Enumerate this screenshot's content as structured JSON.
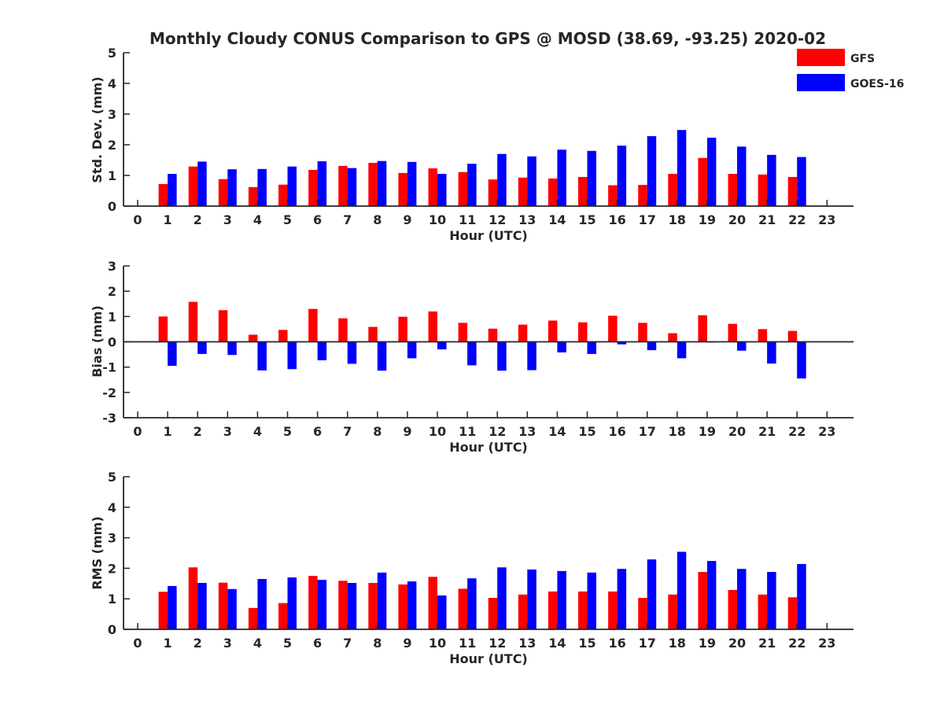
{
  "title": "Monthly Cloudy CONUS Comparison to GPS @ MOSD (38.69, -93.25) 2020-02",
  "legend": {
    "placement": "top-right",
    "items": [
      {
        "name": "GFS",
        "color": "#ff0000"
      },
      {
        "name": "GOES-16",
        "color": "#0000ff"
      }
    ]
  },
  "chart_data": [
    {
      "type": "bar",
      "ylabel": "Std. Dev. (mm)",
      "xlabel": "Hour (UTC)",
      "ylim": [
        0,
        5
      ],
      "yticks": [
        0,
        1,
        2,
        3,
        4,
        5
      ],
      "categories": [
        "0",
        "1",
        "2",
        "3",
        "4",
        "5",
        "6",
        "7",
        "8",
        "9",
        "10",
        "11",
        "12",
        "13",
        "14",
        "15",
        "16",
        "17",
        "18",
        "19",
        "20",
        "21",
        "22",
        "23"
      ],
      "series": [
        {
          "name": "GFS",
          "color": "#ff0000",
          "values": [
            null,
            0.72,
            1.29,
            0.88,
            0.62,
            0.7,
            1.18,
            1.31,
            1.41,
            1.08,
            1.23,
            1.11,
            0.87,
            0.93,
            0.9,
            0.95,
            0.68,
            0.69,
            1.05,
            1.57,
            1.05,
            1.03,
            0.95,
            null
          ]
        },
        {
          "name": "GOES-16",
          "color": "#0000ff",
          "values": [
            null,
            1.05,
            1.45,
            1.2,
            1.21,
            1.29,
            1.46,
            1.24,
            1.47,
            1.44,
            1.05,
            1.38,
            1.7,
            1.62,
            1.84,
            1.8,
            1.97,
            2.28,
            2.48,
            2.23,
            1.94,
            1.67,
            1.6,
            null
          ]
        }
      ]
    },
    {
      "type": "bar",
      "ylabel": "Bias (mm)",
      "xlabel": "Hour (UTC)",
      "ylim": [
        -3,
        3
      ],
      "yticks": [
        -3,
        -2,
        -1,
        0,
        1,
        2,
        3
      ],
      "zero_line": true,
      "categories": [
        "0",
        "1",
        "2",
        "3",
        "4",
        "5",
        "6",
        "7",
        "8",
        "9",
        "10",
        "11",
        "12",
        "13",
        "14",
        "15",
        "16",
        "17",
        "18",
        "19",
        "20",
        "21",
        "22",
        "23"
      ],
      "series": [
        {
          "name": "GFS",
          "color": "#ff0000",
          "values": [
            null,
            1.0,
            1.58,
            1.25,
            0.28,
            0.47,
            1.3,
            0.93,
            0.59,
            0.99,
            1.2,
            0.75,
            0.52,
            0.68,
            0.84,
            0.77,
            1.03,
            0.75,
            0.34,
            1.05,
            0.71,
            0.5,
            0.43,
            null
          ]
        },
        {
          "name": "GOES-16",
          "color": "#0000ff",
          "values": [
            null,
            -0.95,
            -0.48,
            -0.52,
            -1.13,
            -1.08,
            -0.73,
            -0.87,
            -1.14,
            -0.65,
            -0.3,
            -0.93,
            -1.14,
            -1.12,
            -0.42,
            -0.48,
            -0.1,
            -0.33,
            -0.65,
            -0.03,
            -0.35,
            -0.86,
            -1.45,
            null
          ]
        }
      ]
    },
    {
      "type": "bar",
      "ylabel": "RMS (mm)",
      "xlabel": "Hour (UTC)",
      "ylim": [
        0,
        5
      ],
      "yticks": [
        0,
        1,
        2,
        3,
        4,
        5
      ],
      "categories": [
        "0",
        "1",
        "2",
        "3",
        "4",
        "5",
        "6",
        "7",
        "8",
        "9",
        "10",
        "11",
        "12",
        "13",
        "14",
        "15",
        "16",
        "17",
        "18",
        "19",
        "20",
        "21",
        "22",
        "23"
      ],
      "series": [
        {
          "name": "GFS",
          "color": "#ff0000",
          "values": [
            null,
            1.23,
            2.03,
            1.53,
            0.7,
            0.86,
            1.75,
            1.59,
            1.52,
            1.47,
            1.72,
            1.33,
            1.03,
            1.14,
            1.24,
            1.24,
            1.24,
            1.03,
            1.14,
            1.88,
            1.29,
            1.14,
            1.05,
            null
          ]
        },
        {
          "name": "GOES-16",
          "color": "#0000ff",
          "values": [
            null,
            1.42,
            1.52,
            1.32,
            1.65,
            1.7,
            1.62,
            1.52,
            1.86,
            1.57,
            1.11,
            1.67,
            2.03,
            1.96,
            1.91,
            1.86,
            1.98,
            2.29,
            2.54,
            2.24,
            1.98,
            1.88,
            2.14,
            null
          ]
        }
      ]
    }
  ]
}
